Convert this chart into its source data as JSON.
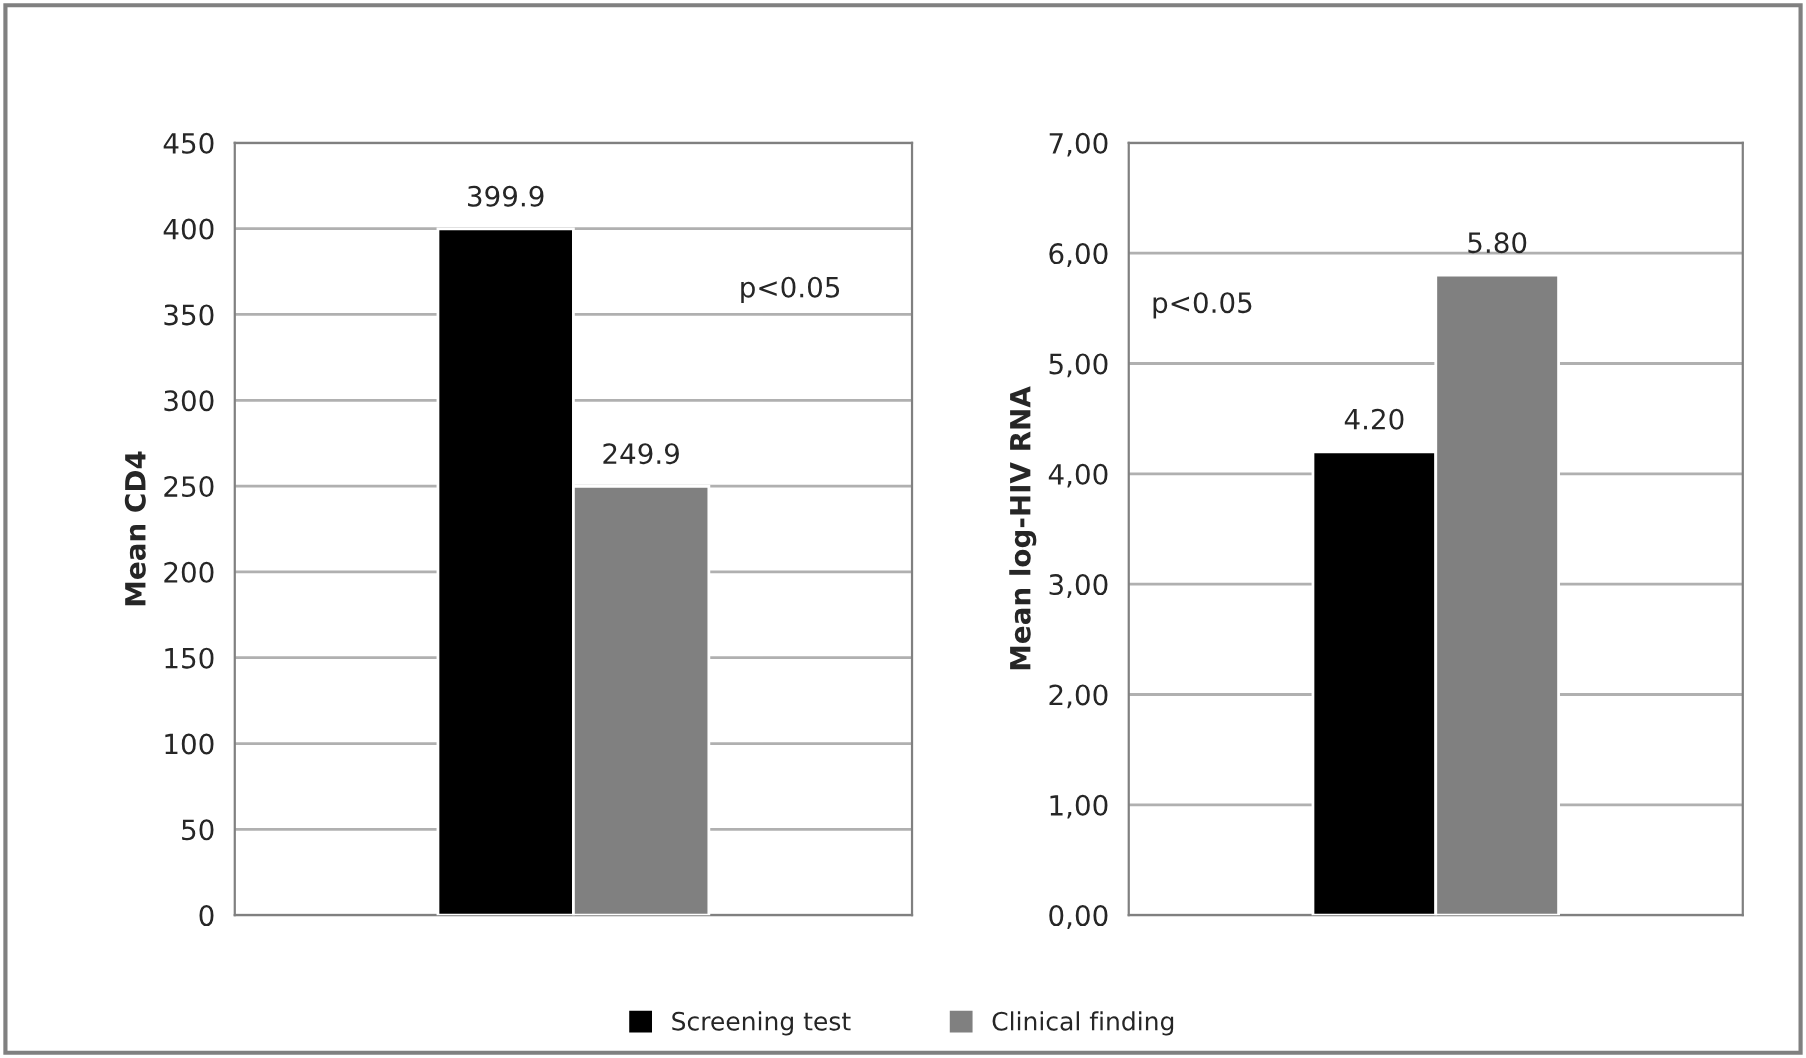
{
  "chart_data": [
    {
      "type": "bar",
      "categories": [
        null
      ],
      "ylabel": "Mean CD4",
      "ylim": [
        0,
        450
      ],
      "yticks": [
        0,
        50,
        100,
        150,
        200,
        250,
        300,
        350,
        400,
        450
      ],
      "grid": "y",
      "legend": "bottom",
      "data_labels": true,
      "annotations": [
        "p<0.05"
      ],
      "series": [
        {
          "name": "Screening test",
          "color": "#000000",
          "values": [
            399.9
          ]
        },
        {
          "name": "Clinical finding",
          "color": "#808080",
          "values": [
            249.9
          ]
        }
      ]
    },
    {
      "type": "bar",
      "categories": [
        null
      ],
      "ylabel": "Mean log-HIV RNA",
      "ylim": [
        0,
        7
      ],
      "yticks": [
        {
          "value": 0,
          "label": "0,00"
        },
        {
          "value": 1,
          "label": "1,00"
        },
        {
          "value": 2,
          "label": "2,00"
        },
        {
          "value": 3,
          "label": "3,00"
        },
        {
          "value": 4,
          "label": "4,00"
        },
        {
          "value": 5,
          "label": "5,00"
        },
        {
          "value": 6,
          "label": "6,00"
        },
        {
          "value": 7,
          "label": "7,00"
        }
      ],
      "grid": "y",
      "annotations": [
        "p<0.05"
      ],
      "series": [
        {
          "color": "#000000",
          "values": [
            4.2
          ],
          "value_labels": [
            "4.20"
          ]
        },
        {
          "color": "#808080",
          "values": [
            5.8
          ],
          "value_labels": [
            "5.80"
          ]
        }
      ]
    }
  ]
}
